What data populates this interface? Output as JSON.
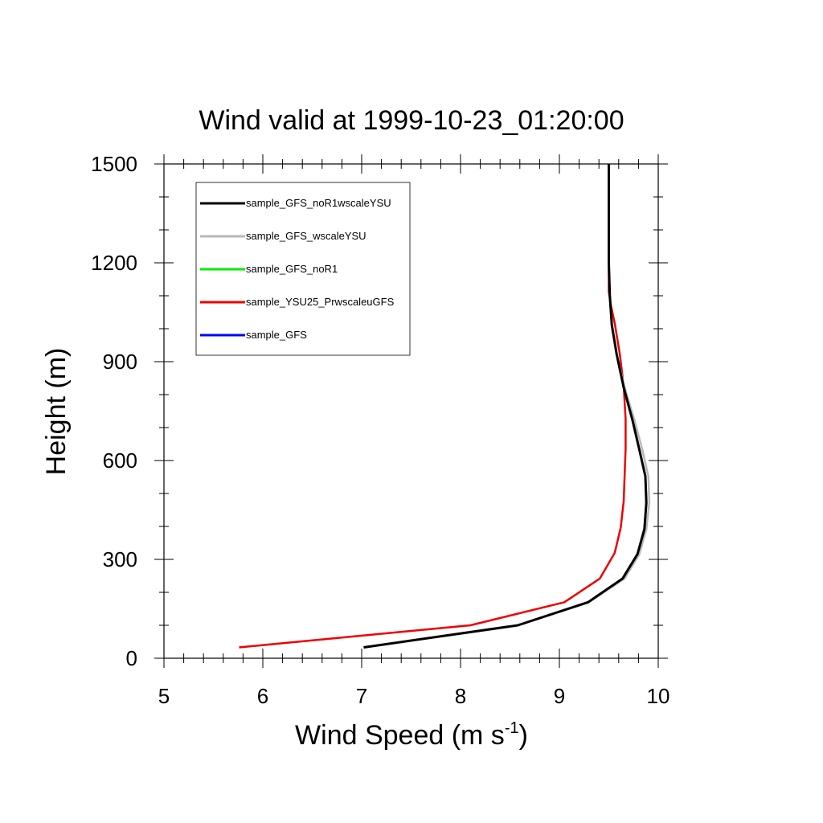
{
  "chart_data": {
    "type": "line",
    "title": "Wind valid at 1999-10-23_01:20:00",
    "xlabel": "Wind Speed (m s",
    "xlabel_superscript": "-1",
    "xlabel_suffix": ")",
    "ylabel": "Height (m)",
    "xlim": [
      5,
      10
    ],
    "ylim": [
      0,
      1500
    ],
    "xticks": [
      5,
      6,
      7,
      8,
      9,
      10
    ],
    "xtick_labels": [
      "5",
      "6",
      "7",
      "8",
      "9",
      "10"
    ],
    "yticks": [
      0,
      300,
      600,
      900,
      1200,
      1500
    ],
    "ytick_labels": [
      "0",
      "300",
      "600",
      "900",
      "1200",
      "1500"
    ],
    "x_minor_step": 0.2,
    "y_minor_step": 100,
    "grid": false,
    "legend_position": "top-left",
    "series": [
      {
        "name": "sample_GFS",
        "color": "#0000ff",
        "points": [
          [
            7.02,
            33
          ],
          [
            8.58,
            100
          ],
          [
            9.29,
            170
          ],
          [
            9.64,
            242
          ],
          [
            9.79,
            316
          ],
          [
            9.86,
            392
          ],
          [
            9.88,
            472
          ],
          [
            9.87,
            552
          ],
          [
            9.81,
            632
          ],
          [
            9.74,
            722
          ],
          [
            9.65,
            822
          ],
          [
            9.58,
            922
          ],
          [
            9.53,
            1012
          ],
          [
            9.51,
            1102
          ],
          [
            9.5,
            1200
          ],
          [
            9.5,
            1300
          ],
          [
            9.5,
            1400
          ],
          [
            9.5,
            1500
          ]
        ]
      },
      {
        "name": "sample_YSU25_PrwscaleuGFS",
        "color": "#ee0000",
        "points": [
          [
            5.76,
            33
          ],
          [
            8.1,
            100
          ],
          [
            9.05,
            170
          ],
          [
            9.41,
            242
          ],
          [
            9.56,
            320
          ],
          [
            9.62,
            396
          ],
          [
            9.65,
            476
          ],
          [
            9.66,
            556
          ],
          [
            9.67,
            636
          ],
          [
            9.67,
            726
          ],
          [
            9.65,
            826
          ],
          [
            9.61,
            926
          ],
          [
            9.56,
            1016
          ],
          [
            9.52,
            1072
          ],
          [
            9.5,
            1112
          ],
          [
            9.5,
            1200
          ],
          [
            9.5,
            1300
          ],
          [
            9.5,
            1400
          ],
          [
            9.5,
            1500
          ]
        ]
      },
      {
        "name": "sample_GFS_noR1",
        "color": "#00ee00",
        "points": [
          [
            7.02,
            33
          ],
          [
            8.58,
            100
          ],
          [
            9.29,
            170
          ],
          [
            9.64,
            242
          ],
          [
            9.79,
            316
          ],
          [
            9.86,
            392
          ],
          [
            9.88,
            472
          ],
          [
            9.87,
            552
          ],
          [
            9.81,
            632
          ],
          [
            9.74,
            722
          ],
          [
            9.65,
            822
          ],
          [
            9.58,
            922
          ],
          [
            9.53,
            1012
          ],
          [
            9.51,
            1102
          ],
          [
            9.5,
            1200
          ],
          [
            9.5,
            1300
          ],
          [
            9.5,
            1400
          ],
          [
            9.5,
            1500
          ]
        ]
      },
      {
        "name": "sample_GFS_wscaleYSU",
        "color": "#b8b8b8",
        "points": [
          [
            7.02,
            33
          ],
          [
            8.58,
            100
          ],
          [
            9.3,
            170
          ],
          [
            9.66,
            242
          ],
          [
            9.81,
            316
          ],
          [
            9.88,
            392
          ],
          [
            9.91,
            472
          ],
          [
            9.9,
            552
          ],
          [
            9.84,
            632
          ],
          [
            9.76,
            722
          ],
          [
            9.66,
            822
          ],
          [
            9.58,
            922
          ],
          [
            9.53,
            1012
          ],
          [
            9.51,
            1102
          ],
          [
            9.5,
            1200
          ],
          [
            9.5,
            1300
          ],
          [
            9.5,
            1400
          ],
          [
            9.5,
            1500
          ]
        ]
      },
      {
        "name": "sample_GFS_noR1wscaleYSU",
        "color": "#000000",
        "points": [
          [
            7.02,
            33
          ],
          [
            8.58,
            100
          ],
          [
            9.29,
            170
          ],
          [
            9.64,
            242
          ],
          [
            9.79,
            316
          ],
          [
            9.86,
            392
          ],
          [
            9.88,
            472
          ],
          [
            9.87,
            552
          ],
          [
            9.81,
            632
          ],
          [
            9.74,
            722
          ],
          [
            9.65,
            822
          ],
          [
            9.58,
            922
          ],
          [
            9.53,
            1012
          ],
          [
            9.51,
            1102
          ],
          [
            9.5,
            1200
          ],
          [
            9.5,
            1300
          ],
          [
            9.5,
            1400
          ],
          [
            9.5,
            1500
          ]
        ]
      }
    ],
    "legend": [
      {
        "name": "sample_GFS_noR1wscaleYSU",
        "color": "#000000"
      },
      {
        "name": "sample_GFS_wscaleYSU",
        "color": "#b8b8b8"
      },
      {
        "name": "sample_GFS_noR1",
        "color": "#00ee00"
      },
      {
        "name": "sample_YSU25_PrwscaleuGFS",
        "color": "#ee0000"
      },
      {
        "name": "sample_GFS",
        "color": "#0000ff"
      }
    ]
  }
}
